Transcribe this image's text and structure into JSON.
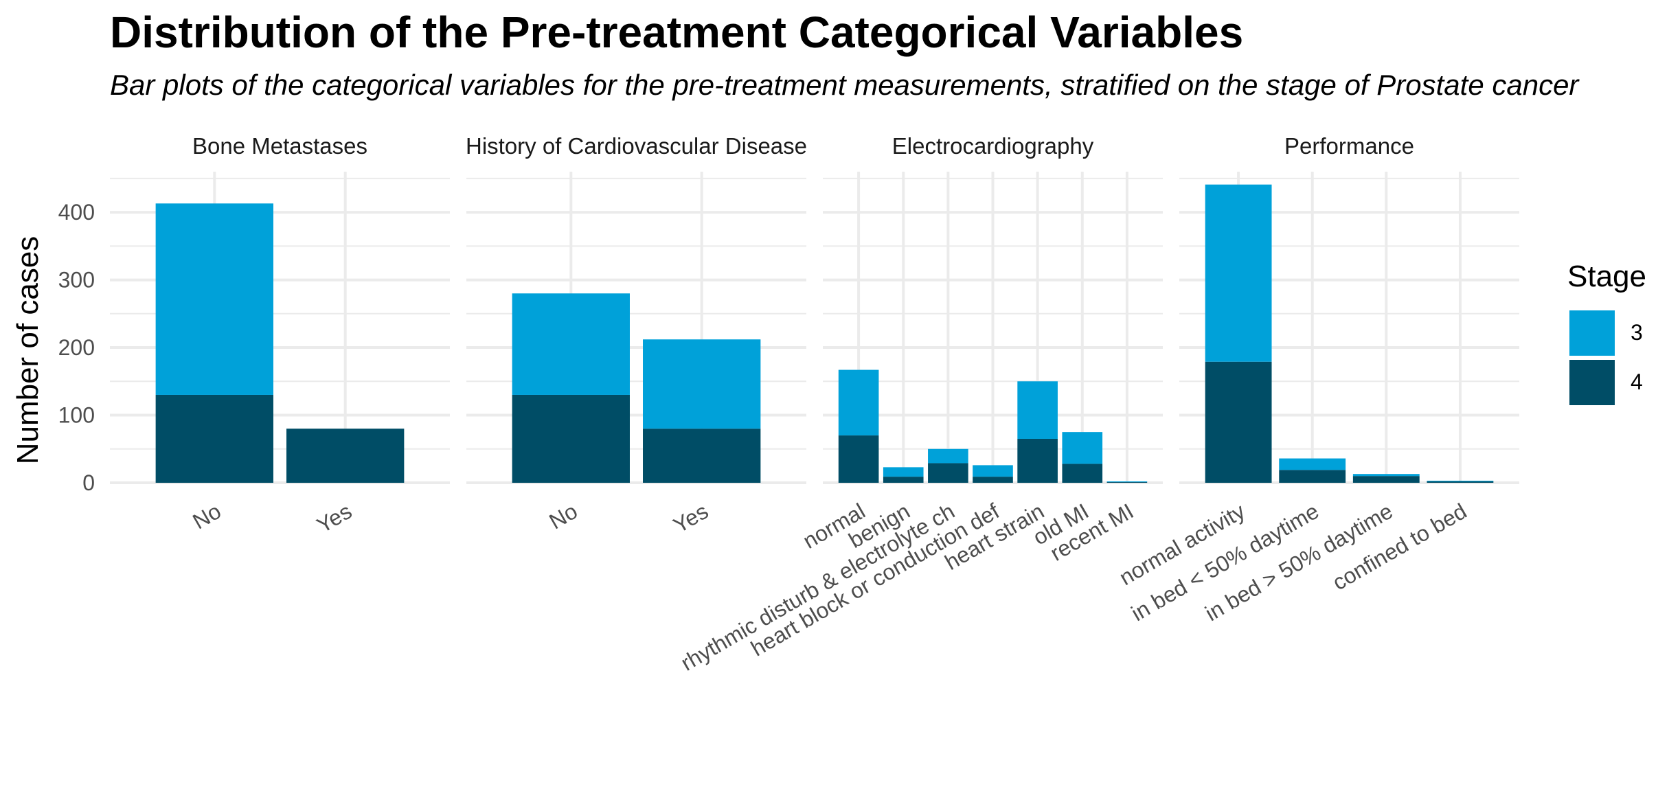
{
  "title": "Distribution of the Pre-treatment Categorical Variables",
  "subtitle": "Bar plots of the categorical variables for the pre-treatment measurements, stratified on the stage of Prostate cancer",
  "chart_data": {
    "type": "bar",
    "stacked": true,
    "ylabel": "Number of cases",
    "ylim": [
      0,
      460
    ],
    "yticks": [
      0,
      100,
      200,
      300,
      400
    ],
    "grid": true,
    "legend": {
      "title": "Stage",
      "placement": "right",
      "entries": [
        {
          "name": "3",
          "color": "#00A1D9"
        },
        {
          "name": "4",
          "color": "#004D66"
        }
      ]
    },
    "panels": [
      {
        "title": "Bone Metastases",
        "categories": [
          "No",
          "Yes"
        ],
        "series": [
          {
            "name": "4",
            "values": [
              130,
              80
            ]
          },
          {
            "name": "3",
            "values": [
              283,
              0
            ]
          }
        ]
      },
      {
        "title": "History of Cardiovascular Disease",
        "categories": [
          "No",
          "Yes"
        ],
        "series": [
          {
            "name": "4",
            "values": [
              130,
              80
            ]
          },
          {
            "name": "3",
            "values": [
              150,
              132
            ]
          }
        ]
      },
      {
        "title": "Electrocardiography",
        "categories": [
          "normal",
          "benign",
          "rhythmic disturb & electrolyte ch",
          "heart block or conduction def",
          "heart strain",
          "old MI",
          "recent MI"
        ],
        "series": [
          {
            "name": "4",
            "values": [
              70,
              9,
              29,
              9,
              65,
              28,
              1
            ]
          },
          {
            "name": "3",
            "values": [
              97,
              14,
              21,
              17,
              85,
              47,
              1
            ]
          }
        ]
      },
      {
        "title": "Performance",
        "categories": [
          "normal activity",
          "in bed < 50% daytime",
          "in bed > 50% daytime",
          "confined to bed"
        ],
        "series": [
          {
            "name": "4",
            "values": [
              179,
              19,
              10,
              2
            ]
          },
          {
            "name": "3",
            "values": [
              262,
              17,
              3,
              1
            ]
          }
        ]
      }
    ]
  }
}
